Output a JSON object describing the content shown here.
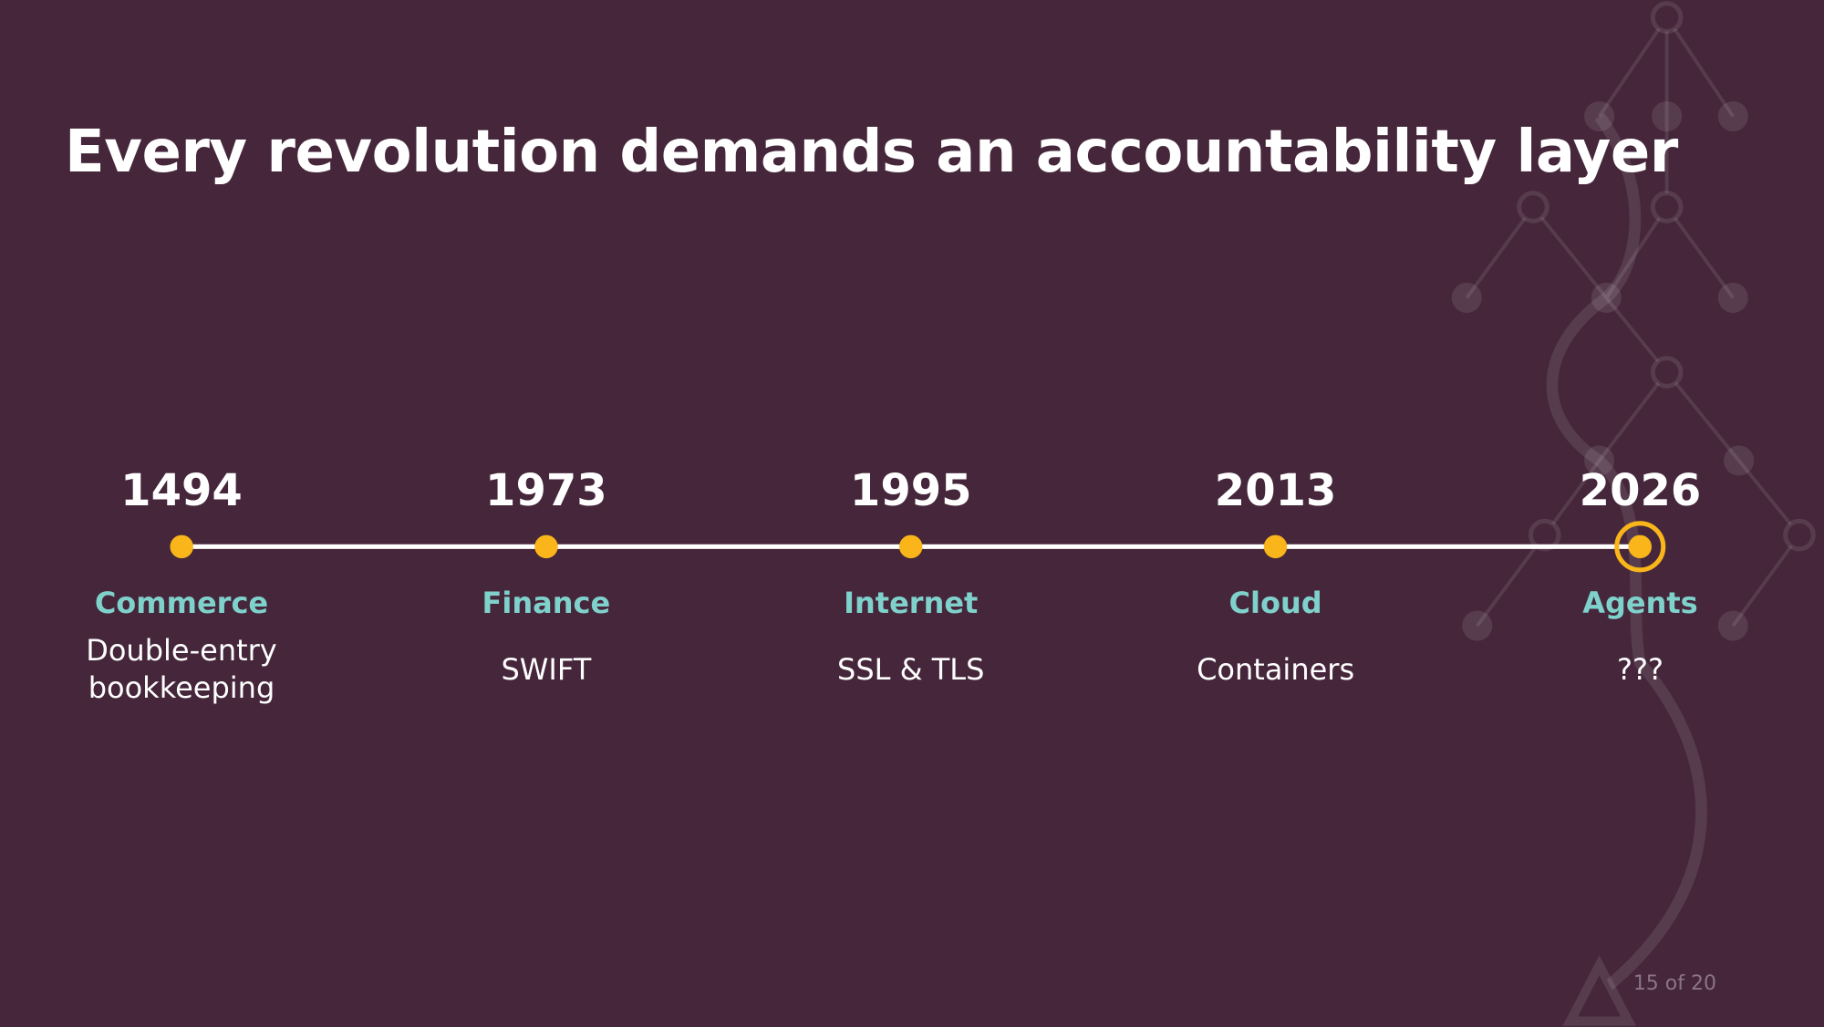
{
  "title": "Every revolution demands an accountability layer",
  "timeline": [
    {
      "year": "1494",
      "category": "Commerce",
      "description": "Double-entry bookkeeping"
    },
    {
      "year": "1973",
      "category": "Finance",
      "description": "SWIFT"
    },
    {
      "year": "1995",
      "category": "Internet",
      "description": "SSL & TLS"
    },
    {
      "year": "2013",
      "category": "Cloud",
      "description": "Containers"
    },
    {
      "year": "2026",
      "category": "Agents",
      "description": "???"
    }
  ],
  "page_number": "15 of 20"
}
